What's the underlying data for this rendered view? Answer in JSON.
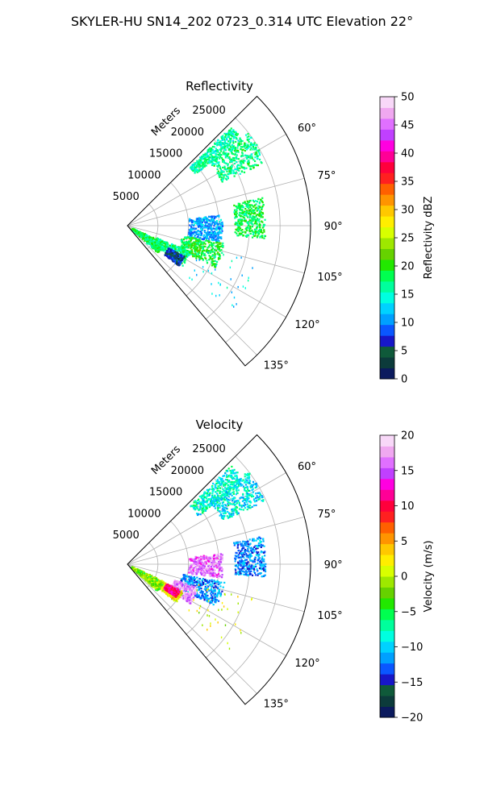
{
  "figure": {
    "suptitle": "SKYLER-HU  SN14_202  0723_0.314 UTC Elevation 22°"
  },
  "chart_data": [
    {
      "type": "heatmap",
      "title": "Reflectivity",
      "projection": "polar sector (azimuth measured from north, clockwise)",
      "range_label": "Meters",
      "range_ticks": [
        5000,
        10000,
        15000,
        20000,
        25000
      ],
      "range_max": 30000,
      "azimuth_ticks": [
        "60°",
        "75°",
        "90°",
        "105°",
        "120°",
        "135°"
      ],
      "azimuth_tick_values": [
        60,
        75,
        90,
        105,
        120,
        135
      ],
      "azimuth_limits": [
        45,
        140
      ],
      "colorbar": {
        "label": "Reflectivity dBZ",
        "min": 0,
        "max": 50,
        "ticks": [
          "0",
          "5",
          "10",
          "15",
          "20",
          "25",
          "30",
          "35",
          "40",
          "45",
          "50"
        ],
        "colors": [
          "#0b1a5e",
          "#0c3b3b",
          "#0f5a3a",
          "#1717c8",
          "#0a57ff",
          "#00a0ff",
          "#00d2ff",
          "#00ffe0",
          "#00ff9c",
          "#00ff50",
          "#22e800",
          "#66d200",
          "#9ee800",
          "#d8ff00",
          "#ffee00",
          "#ffc800",
          "#ff9400",
          "#ff6000",
          "#ff2020",
          "#ff003c",
          "#ff0096",
          "#ff00e0",
          "#c040ff",
          "#e070ff",
          "#f0a8f0",
          "#f8d8f8"
        ]
      },
      "clusters": [
        {
          "az": [
            46,
            52
          ],
          "r": [
            14000,
            23500
          ],
          "value": 16
        },
        {
          "az": [
            52,
            65
          ],
          "r": [
            17000,
            25000
          ],
          "value": 17
        },
        {
          "az": [
            78,
            95
          ],
          "r": [
            17500,
            22500
          ],
          "value": 18
        },
        {
          "az": [
            83,
            100
          ],
          "r": [
            10000,
            15500
          ],
          "value": 11
        },
        {
          "az": [
            100,
            115
          ],
          "r": [
            9000,
            16000
          ],
          "value": 19
        },
        {
          "az": [
            112,
            126
          ],
          "r": [
            5000,
            11000
          ],
          "value": 17
        },
        {
          "az": [
            118,
            128
          ],
          "r": [
            7500,
            10500
          ],
          "value": 6
        },
        {
          "az": [
            114,
            132
          ],
          "r": [
            700,
            6500
          ],
          "value": 18
        },
        {
          "az": [
            105,
            130
          ],
          "r": [
            12000,
            22000
          ],
          "value": 13,
          "sparse": true
        }
      ]
    },
    {
      "type": "heatmap",
      "title": "Velocity",
      "projection": "polar sector (azimuth measured from north, clockwise)",
      "range_label": "Meters",
      "range_ticks": [
        5000,
        10000,
        15000,
        20000,
        25000
      ],
      "range_max": 30000,
      "azimuth_ticks": [
        "60°",
        "75°",
        "90°",
        "105°",
        "120°",
        "135°"
      ],
      "azimuth_tick_values": [
        60,
        75,
        90,
        105,
        120,
        135
      ],
      "azimuth_limits": [
        45,
        140
      ],
      "colorbar": {
        "label": "Velocity (m/s)",
        "min": -20,
        "max": 20,
        "ticks": [
          "−20",
          "−15",
          "−10",
          "−5",
          "0",
          "5",
          "10",
          "15",
          "20"
        ],
        "colors": [
          "#0b1a5e",
          "#0c3b3b",
          "#0f5a3a",
          "#1717c8",
          "#0a57ff",
          "#00a0ff",
          "#00d2ff",
          "#00ffe0",
          "#00ff9c",
          "#00ff50",
          "#22e800",
          "#66d200",
          "#9ee800",
          "#d8ff00",
          "#ffee00",
          "#ffc800",
          "#ff9400",
          "#ff6000",
          "#ff2020",
          "#ff003c",
          "#ff0096",
          "#ff00e0",
          "#c040ff",
          "#e070ff",
          "#f0a8f0",
          "#f8d8f8"
        ]
      },
      "clusters": [
        {
          "az": [
            46,
            55
          ],
          "r": [
            14000,
            23500
          ],
          "value": -8
        },
        {
          "az": [
            52,
            65
          ],
          "r": [
            17000,
            25000
          ],
          "value": -9
        },
        {
          "az": [
            78,
            95
          ],
          "r": [
            17500,
            22500
          ],
          "value": -12
        },
        {
          "az": [
            83,
            98
          ],
          "r": [
            10000,
            15500
          ],
          "value": 16
        },
        {
          "az": [
            100,
            115
          ],
          "r": [
            9000,
            16000
          ],
          "value": -12
        },
        {
          "az": [
            108,
            122
          ],
          "r": [
            8000,
            12000
          ],
          "value": 17
        },
        {
          "az": [
            116,
            128
          ],
          "r": [
            5000,
            10000
          ],
          "value": 2
        },
        {
          "az": [
            116,
            124
          ],
          "r": [
            7000,
            9500
          ],
          "value": 11
        },
        {
          "az": [
            114,
            132
          ],
          "r": [
            700,
            6500
          ],
          "value": -2
        },
        {
          "az": [
            105,
            130
          ],
          "r": [
            12000,
            22000
          ],
          "value": 1,
          "sparse": true
        }
      ]
    }
  ]
}
